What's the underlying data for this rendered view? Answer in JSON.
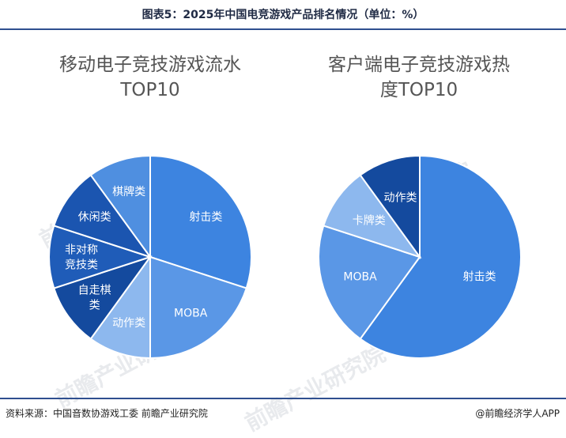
{
  "header": {
    "title": "图表5：2025年中国电竞游戏产品排名情况（单位：%）"
  },
  "charts": [
    {
      "title_lines": [
        "移动电子竞技游戏流水",
        "TOP10"
      ]
    },
    {
      "title_lines": [
        "客户端电子竞技游戏热",
        "度TOP10"
      ]
    }
  ],
  "chart_data": [
    {
      "type": "pie",
      "title": "移动电子竞技游戏流水TOP10",
      "slices": [
        {
          "label": "射击类",
          "value": 30,
          "color": "#3d84e0"
        },
        {
          "label": "MOBA",
          "value": 20,
          "color": "#5a97e6"
        },
        {
          "label": "动作类",
          "value": 10,
          "color": "#8db8ee"
        },
        {
          "label": "自走棋类",
          "value": 10,
          "color": "#144a9e"
        },
        {
          "label": "非对称竞技类",
          "value": 10,
          "color": "#1f5cb8"
        },
        {
          "label": "休闲类",
          "value": 10,
          "color": "#1b55b0"
        },
        {
          "label": "棋牌类",
          "value": 10,
          "color": "#4f8fe0"
        }
      ]
    },
    {
      "type": "pie",
      "title": "客户端电子竞技游戏热度TOP10",
      "slices": [
        {
          "label": "射击类",
          "value": 60,
          "color": "#3d84e0"
        },
        {
          "label": "MOBA",
          "value": 20,
          "color": "#5a97e6"
        },
        {
          "label": "卡牌类",
          "value": 10,
          "color": "#8db8ee"
        },
        {
          "label": "动作类",
          "value": 10,
          "color": "#144a9e"
        }
      ]
    }
  ],
  "watermark": "前瞻产业研究院",
  "footer": {
    "source": "资料来源：中国音数协游戏工委  前瞻产业研究院",
    "brand": "@前瞻经济学人APP"
  }
}
